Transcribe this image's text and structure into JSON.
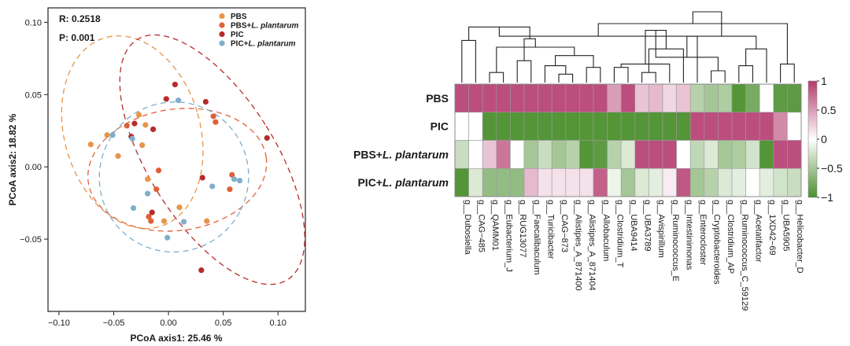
{
  "chart_data": [
    {
      "type": "scatter",
      "xlabel": "PCoA axis1:  25.46 %",
      "ylabel": "PCoA axis2:  18.82 %",
      "xlim": [
        -0.11,
        0.125
      ],
      "ylim": [
        -0.1,
        0.11
      ],
      "xticks": [
        {
          "v": -0.1,
          "label": "−0.10"
        },
        {
          "v": -0.05,
          "label": "−0.05"
        },
        {
          "v": 0.0,
          "label": "0.00"
        },
        {
          "v": 0.05,
          "label": "0.05"
        },
        {
          "v": 0.1,
          "label": "0.10"
        }
      ],
      "yticks": [
        {
          "v": 0.1,
          "label": "0.10"
        },
        {
          "v": 0.05,
          "label": "0.05"
        },
        {
          "v": 0.0,
          "label": "0.00"
        },
        {
          "v": -0.05,
          "label": "−0.05"
        }
      ],
      "stats": {
        "r": "R: 0.2518",
        "p": "P: 0.001"
      },
      "legend_position": "top-right",
      "series": [
        {
          "name_parts": [
            "PBS",
            ""
          ],
          "color": "#E8944A",
          "points": [
            [
              -0.071,
              0.0155
            ],
            [
              -0.056,
              0.022
            ],
            [
              -0.046,
              0.0075
            ],
            [
              -0.027,
              0.036
            ],
            [
              -0.021,
              0.029
            ],
            [
              -0.024,
              0.015
            ],
            [
              -0.019,
              -0.0085
            ],
            [
              -0.004,
              -0.0375
            ],
            [
              0.01,
              -0.028
            ],
            [
              0.035,
              -0.0375
            ]
          ],
          "ellipse": {
            "cx": -0.033,
            "cy": 0.024,
            "rx": 0.062,
            "ry": 0.068,
            "angle": 16
          }
        },
        {
          "name_parts": [
            "PBS+",
            "L. plantarum"
          ],
          "color": "#E06038",
          "points": [
            [
              -0.038,
              0.0285
            ],
            [
              -0.011,
              -0.0155
            ],
            [
              -0.009,
              -0.0025
            ],
            [
              -0.018,
              -0.0345
            ],
            [
              -0.016,
              -0.0375
            ],
            [
              0.041,
              0.035
            ],
            [
              0.043,
              0.031
            ],
            [
              0.058,
              -0.0055
            ],
            [
              0.056,
              -0.0155
            ]
          ],
          "ellipse": {
            "cx": 0.008,
            "cy": -0.002,
            "rx": 0.082,
            "ry": 0.042,
            "angle": 8
          }
        },
        {
          "name_parts": [
            "PIC",
            ""
          ],
          "color": "#B82B2B",
          "points": [
            [
              0.006,
              0.057
            ],
            [
              -0.002,
              0.047
            ],
            [
              -0.031,
              0.03
            ],
            [
              -0.014,
              0.026
            ],
            [
              -0.034,
              0.021
            ],
            [
              0.034,
              0.045
            ],
            [
              0.031,
              -0.0075
            ],
            [
              0.03,
              -0.0715
            ],
            [
              0.09,
              0.02
            ],
            [
              -0.015,
              -0.0315
            ]
          ],
          "ellipse": {
            "cx": 0.04,
            "cy": 0.005,
            "rx": 0.058,
            "ry": 0.098,
            "angle": 32
          }
        },
        {
          "name_parts": [
            "PIC+",
            "L. plantarum"
          ],
          "color": "#7FAFCB",
          "points": [
            [
              0.009,
              0.046
            ],
            [
              -0.051,
              0.022
            ],
            [
              -0.033,
              0.0195
            ],
            [
              -0.019,
              -0.0185
            ],
            [
              -0.032,
              -0.0285
            ],
            [
              0.014,
              -0.038
            ],
            [
              -0.001,
              -0.049
            ],
            [
              0.04,
              -0.0135
            ],
            [
              0.06,
              -0.0085
            ],
            [
              0.065,
              -0.0095
            ]
          ],
          "ellipse": {
            "cx": 0.005,
            "cy": -0.007,
            "rx": 0.068,
            "ry": 0.052,
            "angle": -28
          }
        }
      ]
    },
    {
      "type": "heatmap",
      "rows": [
        {
          "pre": "PBS",
          "italic": "",
          "post": ""
        },
        {
          "pre": "PIC",
          "italic": "",
          "post": ""
        },
        {
          "pre": "PBS+",
          "italic": "L. plantarum",
          "post": ""
        },
        {
          "pre": "PIC+",
          "italic": "L. plantarum",
          "post": ""
        }
      ],
      "columns": [
        "g__Dubosiella",
        "g__CAG−485",
        "g__QAMM01",
        "g__Eubacterium_J",
        "g__RUG13077",
        "g__Faecalibaculum",
        "g__Turicibacter",
        "g__CAG−873",
        "g__Alistipes_A_871400",
        "g__Alistipes_A_871404",
        "g__Allobaculum",
        "g__Clostridium_T",
        "g__UBA9414",
        "g__UBA3789",
        "g__Avispirillum",
        "g__Ruminococcus_E",
        "g__Intestinimonas",
        "g__Enterocloster",
        "g__Cryptobacteroides",
        "g__Clostridium_AP",
        "g__Ruminococcus_C_59129",
        "g__Acetatifactor",
        "g__1XD42−69",
        "g__UBA5905",
        "g__Helicobacter_D"
      ],
      "values": [
        [
          0.9,
          0.9,
          0.9,
          0.9,
          0.9,
          0.9,
          0.9,
          0.9,
          0.9,
          0.9,
          0.9,
          0.5,
          0.9,
          0.3,
          0.35,
          0.2,
          0.3,
          -0.4,
          -0.5,
          -0.45,
          -0.95,
          -0.75,
          0.0,
          -0.9,
          -0.9
        ],
        [
          0.0,
          0.0,
          -0.95,
          -0.95,
          -0.95,
          -0.95,
          -0.95,
          -0.95,
          -0.95,
          -0.95,
          -0.95,
          -0.95,
          -0.95,
          -0.95,
          -0.95,
          -0.95,
          -0.95,
          0.9,
          0.9,
          0.9,
          0.9,
          0.9,
          0.9,
          0.6,
          0.0
        ],
        [
          -0.3,
          0.0,
          0.3,
          0.7,
          0.0,
          -0.5,
          -0.3,
          -0.5,
          -0.4,
          -0.95,
          -0.9,
          -0.4,
          -0.2,
          0.9,
          0.9,
          0.9,
          0.0,
          -0.35,
          -0.2,
          -0.5,
          -0.45,
          -0.25,
          -0.95,
          0.9,
          0.9
        ],
        [
          -0.95,
          -0.2,
          -0.6,
          -0.6,
          -0.6,
          0.35,
          0.15,
          0.15,
          0.15,
          0.15,
          0.8,
          -0.1,
          -0.5,
          -0.2,
          -0.15,
          0.1,
          0.85,
          -0.5,
          -0.4,
          -0.2,
          -0.15,
          0.0,
          -0.15,
          -0.25,
          -0.3
        ]
      ],
      "colorbar": {
        "low": "#4B8F2E",
        "mid": "#FFFFFF",
        "high": "#B53A6E",
        "ticks": [
          {
            "v": 1,
            "label": "1"
          },
          {
            "v": 0.5,
            "label": "0.5"
          },
          {
            "v": 0,
            "label": "0"
          },
          {
            "v": -0.5,
            "label": "−0.5"
          },
          {
            "v": -1,
            "label": "−1"
          }
        ]
      },
      "dendrogram": [
        [
          2,
          3,
          0.12
        ],
        [
          7,
          8,
          0.1
        ],
        [
          26,
          6,
          0.2
        ],
        [
          9,
          10,
          0.18
        ],
        [
          27,
          28,
          0.32
        ],
        [
          25,
          29,
          0.42
        ],
        [
          4,
          5,
          0.26
        ],
        [
          30,
          31,
          0.52
        ],
        [
          0,
          1,
          0.5
        ],
        [
          33,
          32,
          0.66
        ],
        [
          11,
          12,
          0.18
        ],
        [
          13,
          14,
          0.12
        ],
        [
          35,
          15,
          0.22
        ],
        [
          36,
          16,
          0.4
        ],
        [
          34,
          17,
          0.55
        ],
        [
          38,
          37,
          0.62
        ],
        [
          18,
          19,
          0.14
        ],
        [
          20,
          21,
          0.2
        ],
        [
          40,
          41,
          0.3
        ],
        [
          42,
          22,
          0.4
        ],
        [
          23,
          24,
          0.22
        ],
        [
          43,
          44,
          0.55
        ],
        [
          39,
          45,
          0.7
        ],
        [
          46,
          47,
          0.84
        ]
      ]
    }
  ]
}
